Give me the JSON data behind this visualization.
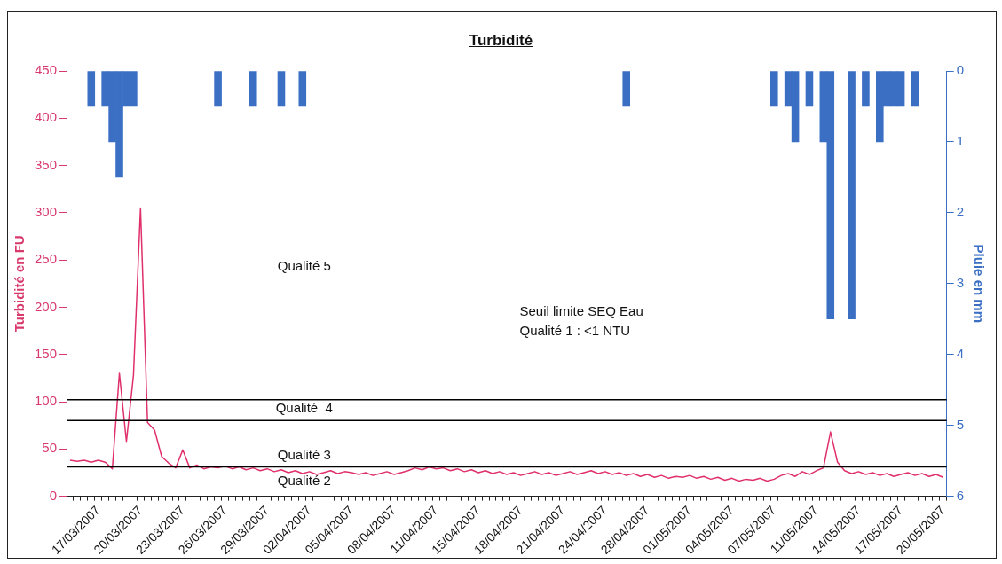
{
  "chart_data": {
    "type": "line",
    "title": "Turbidité",
    "ylabel": "Turbidité en FU",
    "y2label": "Pluie en mm",
    "categories": [
      null,
      null,
      null,
      null,
      "17/03/2007",
      null,
      null,
      null,
      null,
      null,
      "20/03/2007",
      null,
      null,
      null,
      null,
      null,
      "23/03/2007",
      null,
      null,
      null,
      null,
      null,
      "26/03/2007",
      null,
      null,
      null,
      null,
      null,
      "29/03/2007",
      null,
      null,
      null,
      null,
      null,
      "02/04/2007",
      null,
      null,
      null,
      null,
      null,
      "05/04/2007",
      null,
      null,
      null,
      null,
      null,
      "08/04/2007",
      null,
      null,
      null,
      null,
      null,
      "11/04/2007",
      null,
      null,
      null,
      null,
      null,
      "15/04/2007",
      null,
      null,
      null,
      null,
      null,
      "18/04/2007",
      null,
      null,
      null,
      null,
      null,
      "21/04/2007",
      null,
      null,
      null,
      null,
      null,
      "24/04/2007",
      null,
      null,
      null,
      null,
      null,
      "28/04/2007",
      null,
      null,
      null,
      null,
      null,
      "01/05/2007",
      null,
      null,
      null,
      null,
      null,
      "04/05/2007",
      null,
      null,
      null,
      null,
      null,
      "07/05/2007",
      null,
      null,
      null,
      null,
      null,
      "11/05/2007",
      null,
      null,
      null,
      null,
      null,
      "14/05/2007",
      null,
      null,
      null,
      null,
      null,
      "17/05/2007",
      null,
      null,
      null,
      null,
      null,
      "20/05/2007"
    ],
    "series": [
      {
        "color": "#e0306a",
        "values": [
          38,
          37,
          38,
          36,
          38,
          36,
          29,
          130,
          58,
          128,
          305,
          78,
          70,
          42,
          35,
          30,
          49,
          30,
          33,
          29,
          31,
          30,
          32,
          29,
          31,
          28,
          30,
          27,
          29,
          26,
          28,
          25,
          27,
          24,
          26,
          23,
          25,
          27,
          24,
          26,
          25,
          23,
          25,
          22,
          24,
          26,
          23,
          25,
          27,
          30,
          28,
          31,
          29,
          30,
          27,
          29,
          26,
          28,
          25,
          27,
          24,
          26,
          23,
          25,
          22,
          24,
          26,
          23,
          25,
          22,
          24,
          26,
          23,
          25,
          27,
          24,
          26,
          23,
          25,
          22,
          24,
          21,
          23,
          20,
          22,
          19,
          21,
          20,
          22,
          19,
          21,
          18,
          20,
          17,
          19,
          16,
          18,
          17,
          19,
          16,
          18,
          22,
          24,
          21,
          26,
          23,
          27,
          30,
          68,
          36,
          27,
          24,
          26,
          23,
          25,
          22,
          24,
          21,
          23,
          25,
          22,
          24,
          21,
          23,
          20
        ]
      },
      {
        "type": "bar",
        "axis": "y2",
        "color": "#3a6fc4",
        "values": [
          null,
          null,
          null,
          0.5,
          null,
          0.5,
          1.0,
          1.5,
          0.5,
          0.5,
          null,
          null,
          null,
          null,
          null,
          null,
          null,
          null,
          null,
          null,
          null,
          0.5,
          null,
          null,
          null,
          null,
          0.5,
          null,
          null,
          null,
          0.5,
          null,
          null,
          0.5,
          null,
          null,
          null,
          null,
          null,
          null,
          null,
          null,
          null,
          null,
          null,
          null,
          null,
          null,
          null,
          null,
          null,
          null,
          null,
          null,
          null,
          null,
          null,
          null,
          null,
          null,
          null,
          null,
          null,
          null,
          null,
          null,
          null,
          null,
          null,
          null,
          null,
          null,
          null,
          null,
          null,
          null,
          null,
          null,
          null,
          0.5,
          null,
          null,
          null,
          null,
          null,
          null,
          null,
          null,
          null,
          null,
          null,
          null,
          null,
          null,
          null,
          null,
          null,
          null,
          null,
          null,
          0.5,
          null,
          0.5,
          1.0,
          null,
          0.5,
          null,
          1.0,
          3.5,
          null,
          null,
          3.5,
          null,
          0.5,
          null,
          1.0,
          0.5,
          0.5,
          0.5,
          null,
          0.5,
          null,
          null,
          null,
          null
        ]
      }
    ],
    "ylim": [
      0,
      450
    ],
    "yticks": [
      0,
      50,
      100,
      150,
      200,
      250,
      300,
      350,
      400,
      450
    ],
    "y2lim": [
      6,
      0
    ],
    "y2ticks": [
      0,
      1,
      2,
      3,
      4,
      5,
      6
    ],
    "ref_lines": [
      {
        "axis": "y",
        "value": 102,
        "color": "#000000"
      },
      {
        "axis": "y",
        "value": 80,
        "color": "#000000"
      },
      {
        "axis": "y",
        "value": 31,
        "color": "#000000"
      }
    ],
    "annotations": [
      "Qualité 5",
      "Qualité  4",
      "Qualité 3",
      "Qualité 2",
      "Seuil limite SEQ Eau\nQualité 1 : <1 NTU"
    ],
    "grid": false,
    "legend": false
  }
}
